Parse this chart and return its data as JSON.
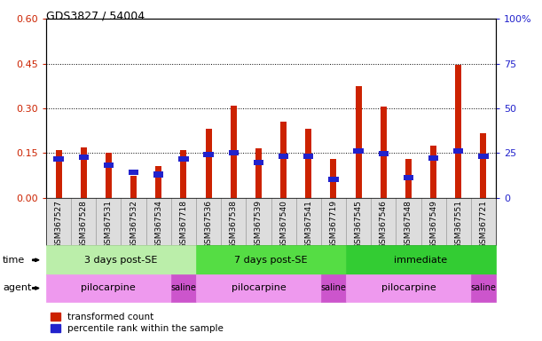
{
  "title": "GDS3827 / 54004",
  "samples": [
    "GSM367527",
    "GSM367528",
    "GSM367531",
    "GSM367532",
    "GSM367534",
    "GSM367718",
    "GSM367536",
    "GSM367538",
    "GSM367539",
    "GSM367540",
    "GSM367541",
    "GSM367719",
    "GSM367545",
    "GSM367546",
    "GSM367548",
    "GSM367549",
    "GSM367551",
    "GSM367721"
  ],
  "red_values": [
    0.16,
    0.17,
    0.15,
    0.075,
    0.105,
    0.16,
    0.23,
    0.31,
    0.165,
    0.255,
    0.23,
    0.13,
    0.375,
    0.305,
    0.13,
    0.175,
    0.445,
    0.215
  ],
  "blue_values": [
    0.13,
    0.135,
    0.108,
    0.085,
    0.078,
    0.13,
    0.145,
    0.152,
    0.118,
    0.14,
    0.138,
    0.062,
    0.158,
    0.148,
    0.068,
    0.132,
    0.158,
    0.138
  ],
  "red_color": "#cc2200",
  "blue_color": "#2222cc",
  "ylim_left": [
    0,
    0.6
  ],
  "ylim_right": [
    0,
    100
  ],
  "yticks_left": [
    0,
    0.15,
    0.3,
    0.45,
    0.6
  ],
  "yticks_right": [
    0,
    25,
    50,
    75,
    100
  ],
  "time_groups": [
    {
      "label": "3 days post-SE",
      "start": 0,
      "end": 6,
      "color": "#bbeeaa"
    },
    {
      "label": "7 days post-SE",
      "start": 6,
      "end": 12,
      "color": "#55dd44"
    },
    {
      "label": "immediate",
      "start": 12,
      "end": 18,
      "color": "#33cc33"
    }
  ],
  "agent_groups": [
    {
      "label": "pilocarpine",
      "start": 0,
      "end": 5,
      "color": "#ee99ee"
    },
    {
      "label": "saline",
      "start": 5,
      "end": 6,
      "color": "#cc55cc"
    },
    {
      "label": "pilocarpine",
      "start": 6,
      "end": 11,
      "color": "#ee99ee"
    },
    {
      "label": "saline",
      "start": 11,
      "end": 12,
      "color": "#cc55cc"
    },
    {
      "label": "pilocarpine",
      "start": 12,
      "end": 17,
      "color": "#ee99ee"
    },
    {
      "label": "saline",
      "start": 17,
      "end": 18,
      "color": "#cc55cc"
    }
  ],
  "legend_red": "transformed count",
  "legend_blue": "percentile rank within the sample",
  "bar_width": 0.25,
  "grid_color": "#000000",
  "bg_color": "#ffffff",
  "ticklabel_bg": "#dddddd"
}
